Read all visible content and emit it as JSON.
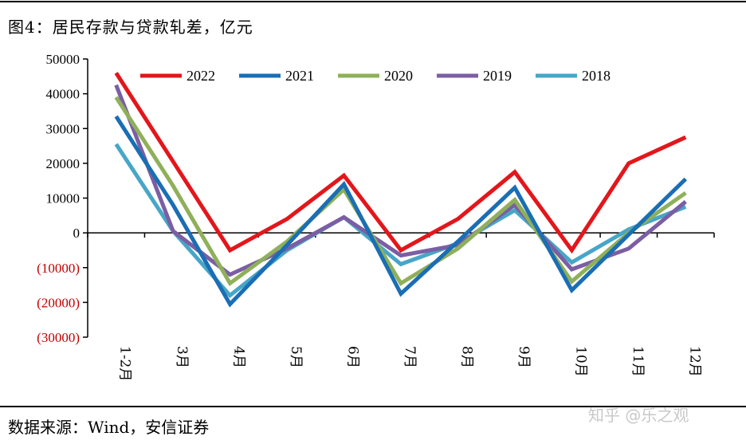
{
  "title": "图4：居民存款与贷款轧差，亿元",
  "source": "数据来源：Wind，安信证券",
  "watermark": "知乎 @乐之观",
  "chart_data": {
    "type": "line",
    "categories": [
      "1-2月",
      "3月",
      "4月",
      "5月",
      "6月",
      "7月",
      "8月",
      "9月",
      "10月",
      "11月",
      "12月"
    ],
    "ylim": [
      -30000,
      50000
    ],
    "yticks": [
      50000,
      40000,
      30000,
      20000,
      10000,
      0,
      -10000,
      -20000,
      -30000
    ],
    "ytick_labels": [
      "50000",
      "40000",
      "30000",
      "20000",
      "10000",
      "0",
      "(10000)",
      "(20000)",
      "(30000)"
    ],
    "negative_label_color": "#c00000",
    "legend_position": "top",
    "series": [
      {
        "name": "2022",
        "color": "#e3161b",
        "values": [
          46000,
          20500,
          -5000,
          4000,
          16500,
          -5000,
          4000,
          17500,
          -5000,
          20000,
          27500
        ]
      },
      {
        "name": "2021",
        "color": "#1a6eb4",
        "values": [
          33500,
          8000,
          -20500,
          -3500,
          14000,
          -17500,
          -2500,
          13000,
          -16500,
          -500,
          15500
        ]
      },
      {
        "name": "2020",
        "color": "#8fb05a",
        "values": [
          39000,
          13500,
          -14500,
          -2500,
          12500,
          -14500,
          -4500,
          9500,
          -14000,
          0,
          11500
        ]
      },
      {
        "name": "2019",
        "color": "#7b5ea3",
        "values": [
          42500,
          500,
          -12000,
          -4500,
          4500,
          -6500,
          -3500,
          8000,
          -10500,
          -4500,
          9000
        ]
      },
      {
        "name": "2018",
        "color": "#47a6c7",
        "values": [
          25500,
          500,
          -18000,
          -5000,
          4500,
          -9000,
          -3000,
          6500,
          -8500,
          1000,
          7500
        ]
      }
    ]
  }
}
